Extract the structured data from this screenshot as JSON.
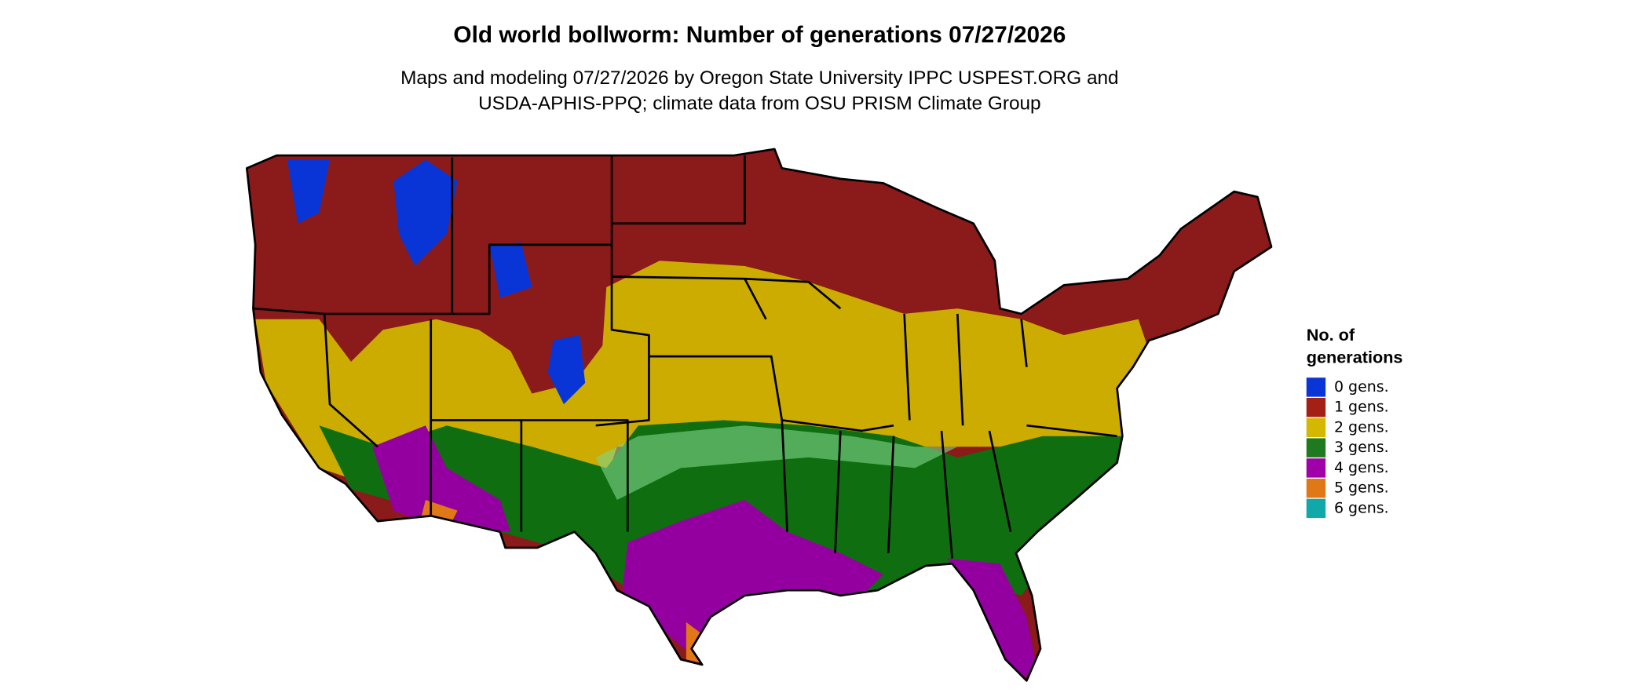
{
  "title": "Old world bollworm: Number of generations 07/27/2026",
  "subtitle": [
    "Maps and modeling 07/27/2026 by Oregon State University IPPC USPEST.ORG and",
    "USDA-APHIS-PPQ; climate data from OSU PRISM Climate Group"
  ],
  "legend": {
    "title": [
      "No. of",
      "generations"
    ],
    "entries": [
      {
        "label": "0 gens.",
        "color": "#0a35d6"
      },
      {
        "label": "1 gens.",
        "color": "#a52014"
      },
      {
        "label": "2 gens.",
        "color": "#d4b800"
      },
      {
        "label": "3 gens.",
        "color": "#1f7a1f"
      },
      {
        "label": "4 gens.",
        "color": "#a000a8"
      },
      {
        "label": "5 gens.",
        "color": "#e07818"
      },
      {
        "label": "6 gens.",
        "color": "#10a8a8"
      }
    ]
  }
}
